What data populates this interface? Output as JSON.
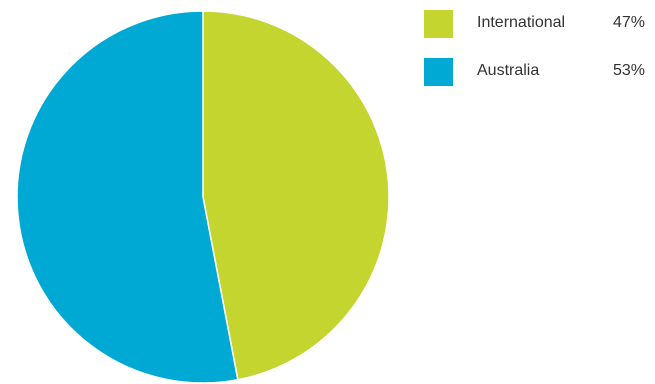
{
  "chart_data": {
    "type": "pie",
    "slices": [
      {
        "label": "International",
        "value": 47,
        "value_label": "47%",
        "color": "#c5d52f"
      },
      {
        "label": "Australia",
        "value": 53,
        "value_label": "53%",
        "color": "#00a9d3"
      }
    ],
    "start_angle": "12 o'clock",
    "direction": "clockwise",
    "legend_position": "top-right"
  }
}
